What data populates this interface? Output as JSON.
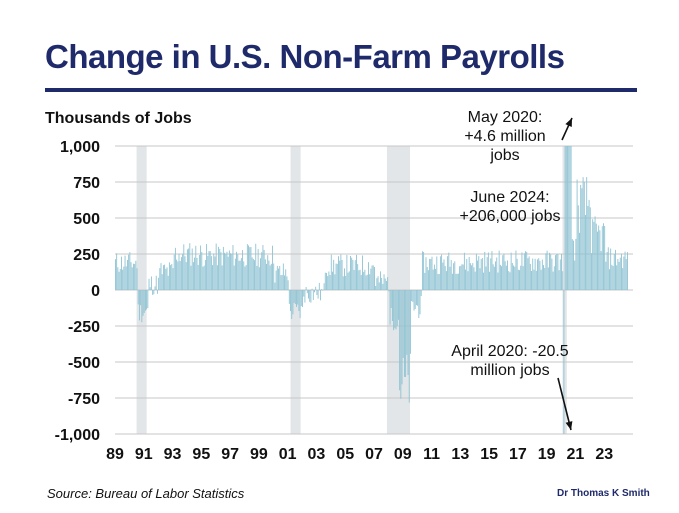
{
  "title": "Change in U.S. Non-Farm Payrolls",
  "source": "Source: Bureau of Labor Statistics",
  "credit": "Dr Thomas K Smith",
  "annotations": {
    "may_2020": "May 2020: +4.6 million jobs",
    "june_2024": "June 2024: +206,000 jobs",
    "april_2020": "April 2020: -20.5 million jobs"
  },
  "colors": {
    "bar": "#8fc3d3",
    "recession": "#e2e6e8",
    "grid": "#c7c7c7",
    "title": "#1f2a6b",
    "arrow": "#111111"
  },
  "chart_data": {
    "type": "bar",
    "title": "Change in U.S. Non-Farm Payrolls",
    "ylabel": "Thousands of Jobs",
    "xlabel": "",
    "ylim": [
      -1000,
      1000
    ],
    "yticks": [
      1000,
      750,
      500,
      250,
      0,
      -250,
      -500,
      -750,
      -1000
    ],
    "ytick_labels": [
      "1,000",
      "750",
      "500",
      "250",
      "0",
      "-250",
      "-500",
      "-750",
      "-1,000"
    ],
    "x_range": [
      1989,
      2025
    ],
    "xticks": [
      1989,
      1991,
      1993,
      1995,
      1997,
      1999,
      2001,
      2003,
      2005,
      2007,
      2009,
      2011,
      2013,
      2015,
      2017,
      2019,
      2021,
      2023
    ],
    "xtick_labels": [
      "89",
      "91",
      "93",
      "95",
      "97",
      "99",
      "01",
      "03",
      "05",
      "07",
      "09",
      "11",
      "13",
      "15",
      "17",
      "19",
      "21",
      "23"
    ],
    "recessions": [
      {
        "start": 1990.5,
        "end": 1991.2
      },
      {
        "start": 2001.2,
        "end": 2001.9
      },
      {
        "start": 2007.9,
        "end": 2009.5
      },
      {
        "start": 2020.1,
        "end": 2020.4
      }
    ],
    "series_note": "Approximate monthly values read from the chart (values clipped to axis range)",
    "segments": [
      {
        "start": 1989.0,
        "end": 1990.5,
        "level": 190
      },
      {
        "start": 1990.5,
        "end": 1991.3,
        "level": -150
      },
      {
        "start": 1991.3,
        "end": 1992.0,
        "level": 40
      },
      {
        "start": 1992.0,
        "end": 1993.0,
        "level": 130
      },
      {
        "start": 1993.0,
        "end": 1995.0,
        "level": 250
      },
      {
        "start": 1995.0,
        "end": 2000.0,
        "level": 240
      },
      {
        "start": 2000.0,
        "end": 2001.0,
        "level": 120
      },
      {
        "start": 2001.0,
        "end": 2002.0,
        "level": -150
      },
      {
        "start": 2002.0,
        "end": 2003.5,
        "level": -20
      },
      {
        "start": 2003.5,
        "end": 2007.0,
        "level": 170
      },
      {
        "start": 2007.0,
        "end": 2008.0,
        "level": 60
      },
      {
        "start": 2008.0,
        "end": 2008.7,
        "level": -200
      },
      {
        "start": 2008.7,
        "end": 2009.5,
        "level": -650
      },
      {
        "start": 2009.5,
        "end": 2010.3,
        "level": -120
      },
      {
        "start": 2010.3,
        "end": 2014.0,
        "level": 190
      },
      {
        "start": 2014.0,
        "end": 2020.1,
        "level": 200
      },
      {
        "start": 2020.1,
        "end": 2020.2,
        "level": -1000
      },
      {
        "start": 2020.2,
        "end": 2020.7,
        "level": 1000
      },
      {
        "start": 2020.7,
        "end": 2021.0,
        "level": 300
      },
      {
        "start": 2021.0,
        "end": 2022.0,
        "level": 600
      },
      {
        "start": 2022.0,
        "end": 2023.0,
        "level": 380
      },
      {
        "start": 2023.0,
        "end": 2024.6,
        "level": 220
      }
    ],
    "key_points": [
      {
        "x": 2020.25,
        "value": -20500,
        "label": "April 2020"
      },
      {
        "x": 2020.33,
        "value": 4600,
        "label": "May 2020"
      },
      {
        "x": 2024.42,
        "value": 206,
        "label": "June 2024"
      }
    ]
  }
}
